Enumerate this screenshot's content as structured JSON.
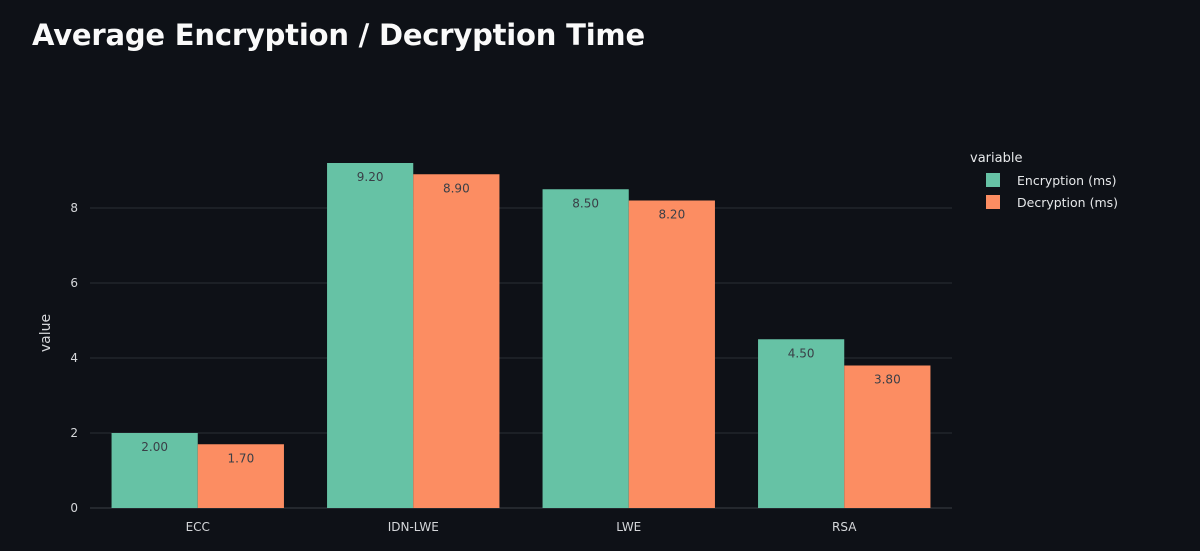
{
  "page": {
    "title": "Average Encryption / Decryption Time",
    "background": "#0e1117"
  },
  "legend": {
    "title": "variable",
    "items": [
      {
        "label": "Encryption (ms)",
        "color": "#66c2a5"
      },
      {
        "label": "Decryption (ms)",
        "color": "#fc8d62"
      }
    ]
  },
  "chart_data": {
    "type": "bar",
    "barmode": "group",
    "title": "Average Encryption / Decryption Time",
    "categories": [
      "ECC",
      "IDN-LWE",
      "LWE",
      "RSA"
    ],
    "series": [
      {
        "name": "Encryption (ms)",
        "color": "#66c2a5",
        "values": [
          2.0,
          9.2,
          8.5,
          4.5
        ],
        "labels": [
          "2.00",
          "9.20",
          "8.50",
          "4.50"
        ]
      },
      {
        "name": "Decryption (ms)",
        "color": "#fc8d62",
        "values": [
          1.7,
          8.9,
          8.2,
          3.8
        ],
        "labels": [
          "1.70",
          "8.90",
          "8.20",
          "3.80"
        ]
      }
    ],
    "xlabel": "",
    "ylabel": "value",
    "yticks": [
      0,
      2,
      4,
      6,
      8
    ],
    "ylim": [
      0,
      9.68
    ],
    "grid": true,
    "legend_title": "variable",
    "legend_position": "right-top",
    "text_labels_inside_bars": true
  }
}
